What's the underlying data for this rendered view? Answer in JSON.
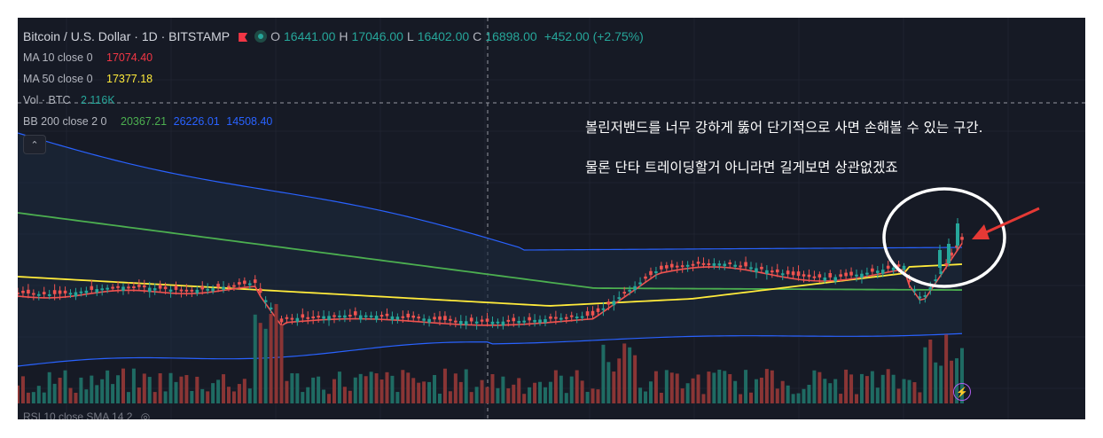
{
  "header": {
    "symbol": "Bitcoin / U.S. Dollar · 1D · BITSTAMP",
    "ohlc": [
      {
        "key": "O",
        "value": "16441.00"
      },
      {
        "key": "H",
        "value": "17046.00"
      },
      {
        "key": "L",
        "value": "16402.00"
      },
      {
        "key": "C",
        "value": "16898.00"
      }
    ],
    "change": "+452.00 (+2.75%)"
  },
  "indicators": {
    "ma10": {
      "label": "MA 10 close 0",
      "value": "17074.40",
      "color": "#f23645"
    },
    "ma50": {
      "label": "MA 50 close 0",
      "value": "17377.18",
      "color": "#ffeb3b"
    },
    "vol": {
      "label": "Vol · BTC",
      "value": "2.116K",
      "color": "#26a69a"
    },
    "bb": {
      "label": "BB 200 close 2 0",
      "basis": "20367.21",
      "upper": "26226.01",
      "lower": "14508.40",
      "basis_color": "#4caf50",
      "band_color": "#2962ff"
    }
  },
  "annotations": {
    "line1": "볼린저밴드를 너무 강하게 뚫어 단기적으로 사면 손해볼 수 있는 구간.",
    "line2": "물론 단타 트레이딩할거 아니라면 길게보면 상관없겠죠",
    "circle_color": "#ffffff",
    "arrow_color": "#e53935"
  },
  "footer": {
    "rsi_label": "RSI 10 close SMA 14 2"
  },
  "icons": {
    "collapse": "chevron-up-icon",
    "bolt": "lightning-icon",
    "flag": "flag-icon",
    "eye": "eye-off-icon"
  },
  "colors": {
    "background": "#161a25",
    "up": "#26a69a",
    "down": "#ef5350"
  }
}
